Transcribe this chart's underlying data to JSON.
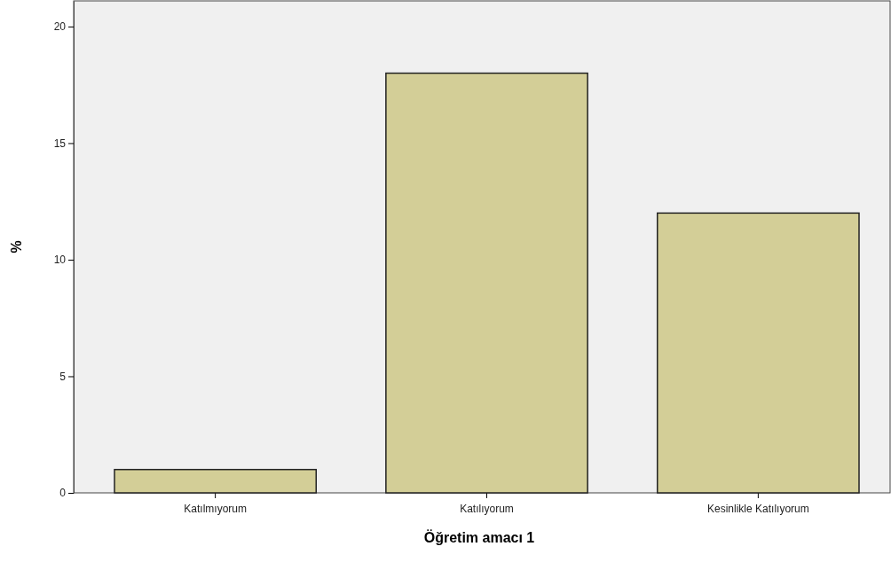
{
  "chart_data": {
    "type": "bar",
    "xlabel": "Öğretim amacı 1",
    "ylabel": "%",
    "categories": [
      "Katılmıyorum",
      "Katılıyorum",
      "Kesinlikle Katılıyorum"
    ],
    "values": [
      1,
      18,
      12
    ],
    "color": "#d3ce97",
    "ylim": [
      0,
      21.1
    ],
    "yticks": [
      0,
      5,
      10,
      15,
      20
    ],
    "grid": false
  }
}
